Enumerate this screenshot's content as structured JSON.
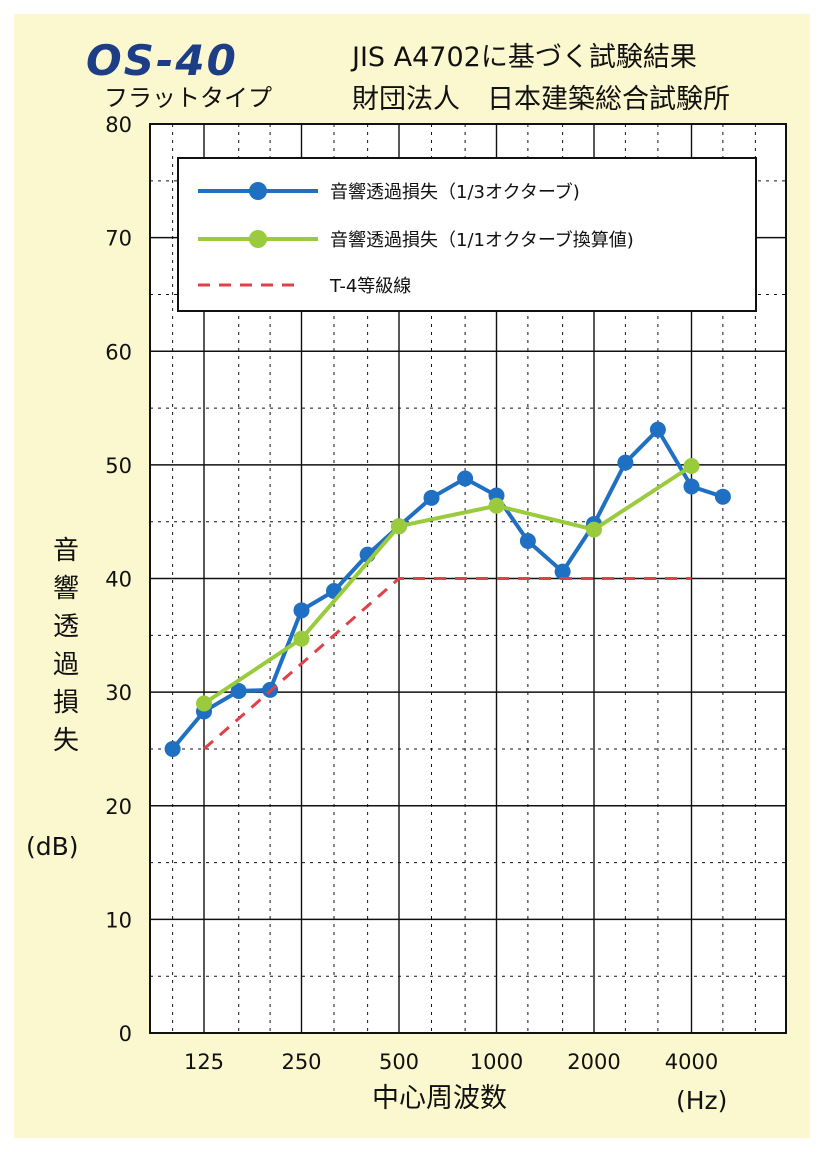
{
  "header": {
    "logo": "OS-40",
    "subtype": "フラットタイプ",
    "title_line1": "JIS A4702に基づく試験結果",
    "title_line2": "財団法人　日本建築総合試験所"
  },
  "chart_data": {
    "type": "line",
    "x_scale": "log2",
    "ylabel": [
      "音",
      "響",
      "透",
      "過",
      "損",
      "失"
    ],
    "yunit": "(dB)",
    "xlabel": "中心周波数",
    "xunit": "(Hz)",
    "ylim": [
      0,
      80
    ],
    "y_ticks": [
      0,
      10,
      20,
      30,
      40,
      50,
      60,
      70,
      80
    ],
    "x_tick_labels": [
      "125",
      "250",
      "500",
      "1000",
      "2000",
      "4000"
    ],
    "x_tick_values": [
      125,
      250,
      500,
      1000,
      2000,
      4000
    ],
    "grid": true,
    "legend_position": "top",
    "series": [
      {
        "name": "音響透過損失（1/3オクターブ)",
        "color": "#1f6fc2",
        "style": "solid-markers",
        "x": [
          100,
          125,
          160,
          200,
          250,
          315,
          400,
          500,
          630,
          800,
          1000,
          1250,
          1600,
          2000,
          2500,
          3150,
          4000,
          5000
        ],
        "values": [
          25.0,
          28.3,
          30.1,
          30.2,
          37.2,
          38.9,
          42.1,
          44.6,
          47.1,
          48.8,
          47.3,
          43.3,
          40.6,
          44.8,
          50.2,
          53.1,
          48.1,
          47.2
        ]
      },
      {
        "name": "音響透過損失（1/1オクターブ換算値)",
        "color": "#9acb3c",
        "style": "solid-markers",
        "x": [
          125,
          250,
          500,
          1000,
          2000,
          4000
        ],
        "values": [
          29.0,
          34.7,
          44.6,
          46.4,
          44.3,
          49.9
        ]
      },
      {
        "name": "T-4等級線",
        "color": "#e04048",
        "style": "dashed",
        "x": [
          125,
          500,
          1000,
          2000,
          4000
        ],
        "values": [
          25,
          40,
          40,
          40,
          40
        ]
      }
    ]
  }
}
